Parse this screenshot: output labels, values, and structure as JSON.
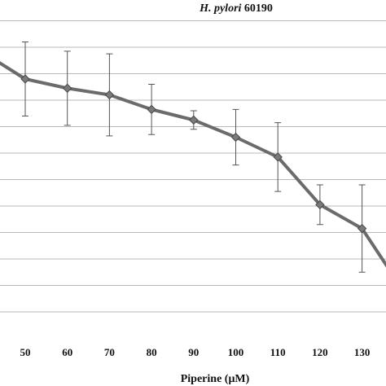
{
  "chart_data": {
    "type": "line",
    "title_italic": "H. pylori",
    "title_rest": " 60190",
    "xlabel": "Piperine (μM)",
    "ylabel": "",
    "x_ticks": [
      50,
      60,
      70,
      80,
      90,
      100,
      110,
      120,
      130
    ],
    "xlim": [
      45,
      135
    ],
    "ylim": [
      0,
      12
    ],
    "grid": true,
    "series_color": "#6b6b6b",
    "series": [
      {
        "x": [
          40,
          50,
          60,
          70,
          80,
          90,
          100,
          110,
          120,
          130,
          140
        ],
        "y": [
          9.8,
          8.8,
          8.45,
          8.2,
          7.65,
          7.25,
          6.6,
          5.85,
          4.05,
          3.15,
          0.75
        ],
        "err": [
          null,
          1.4,
          1.4,
          1.55,
          0.95,
          0.35,
          1.05,
          1.3,
          0.75,
          1.65,
          null
        ]
      }
    ]
  }
}
